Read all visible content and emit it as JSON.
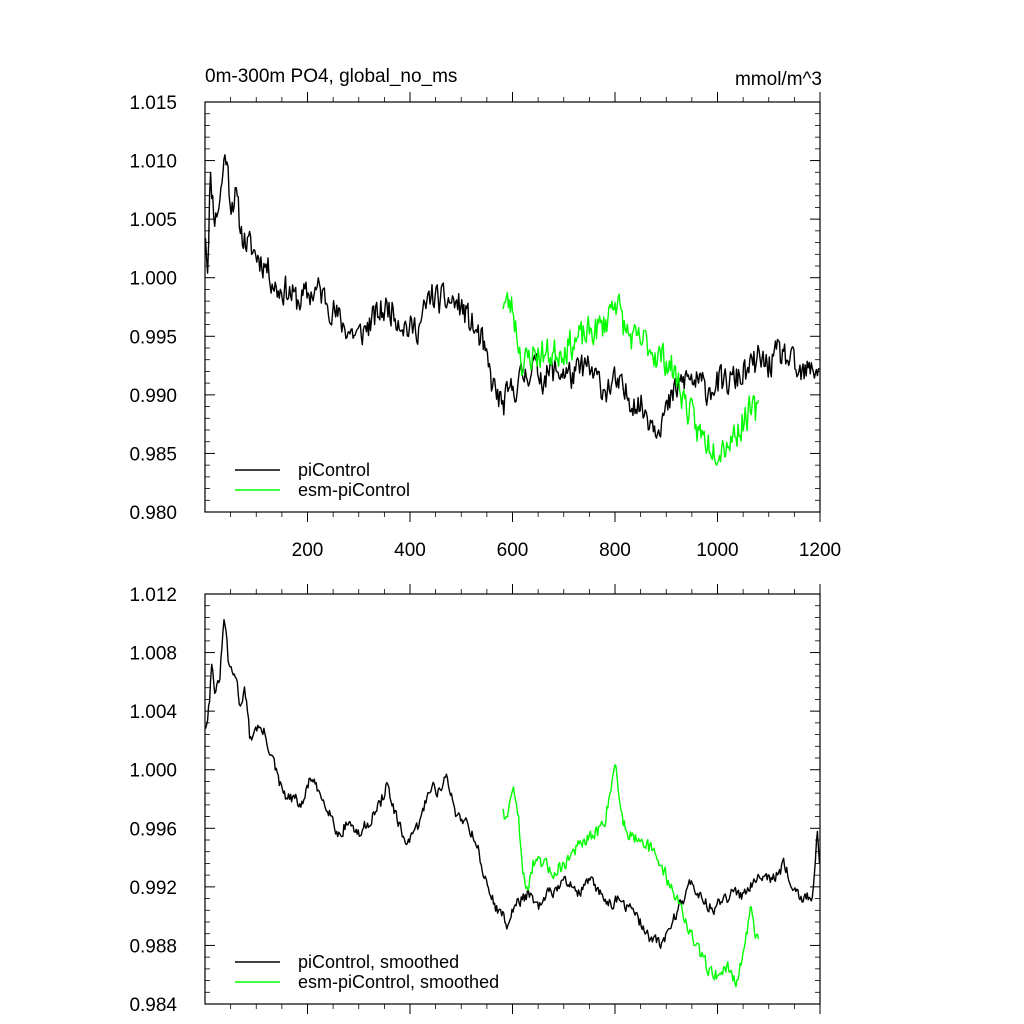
{
  "chart_data": [
    {
      "type": "line",
      "title": "0m-300m PO4, global_no_ms",
      "units": "mmol/m^3",
      "xlabel": "",
      "ylabel": "",
      "xlim": [
        0,
        1200
      ],
      "ylim": [
        0.98,
        1.015
      ],
      "xticks": [
        200,
        400,
        600,
        800,
        1000,
        1200
      ],
      "xtick_labels": [
        "200",
        "400",
        "600",
        "800",
        "1000",
        "1200"
      ],
      "yticks": [
        0.98,
        0.985,
        0.99,
        0.995,
        1.0,
        1.005,
        1.01,
        1.015
      ],
      "ytick_labels": [
        "0.980",
        "0.985",
        "0.990",
        "0.995",
        "1.000",
        "1.005",
        "1.010",
        "1.015"
      ],
      "grid": false,
      "legend_position": "bottom-left",
      "series": [
        {
          "name": "piControl",
          "color": "#000000",
          "x_start": 1,
          "x_end": 1200,
          "anchors": [
            [
              1,
              1.004
            ],
            [
              5,
              1.001
            ],
            [
              10,
              1.0085
            ],
            [
              20,
              1.005
            ],
            [
              30,
              1.007
            ],
            [
              40,
              1.011
            ],
            [
              50,
              1.0065
            ],
            [
              60,
              1.007
            ],
            [
              70,
              1.004
            ],
            [
              80,
              1.003
            ],
            [
              100,
              1.002
            ],
            [
              120,
              1.001
            ],
            [
              140,
              0.999
            ],
            [
              160,
              0.999
            ],
            [
              180,
              0.998
            ],
            [
              200,
              0.9985
            ],
            [
              220,
              0.999
            ],
            [
              240,
              0.998
            ],
            [
              260,
              0.9965
            ],
            [
              280,
              0.9955
            ],
            [
              300,
              0.995
            ],
            [
              320,
              0.996
            ],
            [
              340,
              0.997
            ],
            [
              360,
              0.9975
            ],
            [
              380,
              0.9965
            ],
            [
              400,
              0.9955
            ],
            [
              420,
              0.996
            ],
            [
              440,
              0.9985
            ],
            [
              460,
              0.998
            ],
            [
              480,
              0.998
            ],
            [
              500,
              0.9975
            ],
            [
              520,
              0.996
            ],
            [
              540,
              0.9945
            ],
            [
              560,
              0.991
            ],
            [
              580,
              0.989
            ],
            [
              600,
              0.9905
            ],
            [
              620,
              0.9915
            ],
            [
              640,
              0.9925
            ],
            [
              660,
              0.9915
            ],
            [
              680,
              0.992
            ],
            [
              700,
              0.992
            ],
            [
              720,
              0.9915
            ],
            [
              740,
              0.9925
            ],
            [
              760,
              0.9915
            ],
            [
              780,
              0.9905
            ],
            [
              800,
              0.991
            ],
            [
              820,
              0.99
            ],
            [
              840,
              0.9895
            ],
            [
              860,
              0.9885
            ],
            [
              880,
              0.9875
            ],
            [
              900,
              0.9885
            ],
            [
              920,
              0.9905
            ],
            [
              940,
              0.9915
            ],
            [
              960,
              0.991
            ],
            [
              980,
              0.9905
            ],
            [
              1000,
              0.991
            ],
            [
              1020,
              0.991
            ],
            [
              1040,
              0.9915
            ],
            [
              1060,
              0.992
            ],
            [
              1080,
              0.993
            ],
            [
              1100,
              0.9925
            ],
            [
              1120,
              0.9935
            ],
            [
              1140,
              0.993
            ],
            [
              1160,
              0.9915
            ],
            [
              1180,
              0.992
            ],
            [
              1200,
              0.9925
            ]
          ],
          "noise": 0.0018,
          "seed": 11
        },
        {
          "name": "esm-piControl",
          "color": "#00ff00",
          "x_start": 580,
          "x_end": 1080,
          "anchors": [
            [
              580,
              0.998
            ],
            [
              600,
              0.9975
            ],
            [
              620,
              0.9925
            ],
            [
              640,
              0.9935
            ],
            [
              660,
              0.9935
            ],
            [
              680,
              0.9935
            ],
            [
              700,
              0.994
            ],
            [
              720,
              0.9945
            ],
            [
              740,
              0.995
            ],
            [
              760,
              0.9955
            ],
            [
              780,
              0.996
            ],
            [
              800,
              0.9985
            ],
            [
              820,
              0.9955
            ],
            [
              840,
              0.9945
            ],
            [
              860,
              0.9945
            ],
            [
              880,
              0.9935
            ],
            [
              900,
              0.993
            ],
            [
              920,
              0.9915
            ],
            [
              940,
              0.989
            ],
            [
              960,
              0.987
            ],
            [
              980,
              0.986
            ],
            [
              1000,
              0.9855
            ],
            [
              1020,
              0.986
            ],
            [
              1040,
              0.987
            ],
            [
              1060,
              0.9885
            ],
            [
              1080,
              0.9885
            ]
          ],
          "noise": 0.0019,
          "seed": 23
        }
      ]
    },
    {
      "type": "line",
      "title": "",
      "units": "",
      "xlabel": "",
      "ylabel": "",
      "xlim": [
        0,
        1200
      ],
      "ylim": [
        0.984,
        1.012
      ],
      "xticks": [
        200,
        400,
        600,
        800,
        1000,
        1200
      ],
      "xtick_labels": [],
      "yticks": [
        0.984,
        0.988,
        0.992,
        0.996,
        1.0,
        1.004,
        1.008,
        1.012
      ],
      "ytick_labels": [
        "0.984",
        "0.988",
        "0.992",
        "0.996",
        "1.000",
        "1.004",
        "1.008",
        "1.012"
      ],
      "grid": false,
      "legend_position": "bottom-left",
      "series": [
        {
          "name": "piControl, smoothed",
          "color": "#000000",
          "x_start": 1,
          "x_end": 1200,
          "anchors": [
            [
              1,
              1.003
            ],
            [
              8,
              1.0045
            ],
            [
              14,
              1.0075
            ],
            [
              20,
              1.005
            ],
            [
              28,
              1.006
            ],
            [
              38,
              1.0105
            ],
            [
              45,
              1.0075
            ],
            [
              52,
              1.0065
            ],
            [
              60,
              1.0065
            ],
            [
              68,
              1.0045
            ],
            [
              78,
              1.0055
            ],
            [
              88,
              1.002
            ],
            [
              100,
              1.003
            ],
            [
              115,
              1.0025
            ],
            [
              130,
              1.001
            ],
            [
              145,
              0.999
            ],
            [
              160,
              0.998
            ],
            [
              175,
              0.998
            ],
            [
              190,
              0.9975
            ],
            [
              205,
              0.9995
            ],
            [
              220,
              0.9985
            ],
            [
              240,
              0.9975
            ],
            [
              260,
              0.9955
            ],
            [
              280,
              0.9965
            ],
            [
              300,
              0.9955
            ],
            [
              320,
              0.9965
            ],
            [
              340,
              0.9975
            ],
            [
              355,
              0.999
            ],
            [
              370,
              0.997
            ],
            [
              385,
              0.9955
            ],
            [
              400,
              0.995
            ],
            [
              420,
              0.9965
            ],
            [
              440,
              0.999
            ],
            [
              455,
              0.9985
            ],
            [
              470,
              0.9995
            ],
            [
              490,
              0.997
            ],
            [
              510,
              0.9965
            ],
            [
              530,
              0.995
            ],
            [
              550,
              0.992
            ],
            [
              570,
              0.9905
            ],
            [
              590,
              0.9895
            ],
            [
              610,
              0.991
            ],
            [
              630,
              0.9915
            ],
            [
              650,
              0.9905
            ],
            [
              670,
              0.9915
            ],
            [
              690,
              0.992
            ],
            [
              710,
              0.9925
            ],
            [
              730,
              0.9915
            ],
            [
              750,
              0.9925
            ],
            [
              770,
              0.9915
            ],
            [
              790,
              0.991
            ],
            [
              810,
              0.991
            ],
            [
              830,
              0.9905
            ],
            [
              850,
              0.9895
            ],
            [
              870,
              0.9885
            ],
            [
              890,
              0.988
            ],
            [
              910,
              0.9895
            ],
            [
              930,
              0.991
            ],
            [
              950,
              0.9925
            ],
            [
              970,
              0.991
            ],
            [
              990,
              0.9905
            ],
            [
              1010,
              0.991
            ],
            [
              1030,
              0.9915
            ],
            [
              1050,
              0.9915
            ],
            [
              1070,
              0.9925
            ],
            [
              1090,
              0.993
            ],
            [
              1110,
              0.9925
            ],
            [
              1130,
              0.9935
            ],
            [
              1150,
              0.992
            ],
            [
              1170,
              0.991
            ],
            [
              1185,
              0.9915
            ],
            [
              1195,
              0.9955
            ],
            [
              1200,
              0.9925
            ]
          ],
          "noise": 0.0006,
          "seed": 31
        },
        {
          "name": "esm-piControl, smoothed",
          "color": "#00ff00",
          "x_start": 580,
          "x_end": 1080,
          "anchors": [
            [
              580,
              0.9975
            ],
            [
              590,
              0.9965
            ],
            [
              600,
              0.999
            ],
            [
              612,
              0.9965
            ],
            [
              625,
              0.9915
            ],
            [
              640,
              0.9935
            ],
            [
              660,
              0.9935
            ],
            [
              680,
              0.993
            ],
            [
              700,
              0.9935
            ],
            [
              720,
              0.9945
            ],
            [
              740,
              0.995
            ],
            [
              760,
              0.9955
            ],
            [
              780,
              0.9965
            ],
            [
              800,
              1.0005
            ],
            [
              815,
              0.9965
            ],
            [
              830,
              0.9955
            ],
            [
              850,
              0.9955
            ],
            [
              870,
              0.9945
            ],
            [
              890,
              0.9935
            ],
            [
              910,
              0.992
            ],
            [
              930,
              0.9905
            ],
            [
              950,
              0.9885
            ],
            [
              965,
              0.9875
            ],
            [
              980,
              0.9865
            ],
            [
              1000,
              0.986
            ],
            [
              1020,
              0.9865
            ],
            [
              1040,
              0.9855
            ],
            [
              1055,
              0.9885
            ],
            [
              1065,
              0.9905
            ],
            [
              1080,
              0.988
            ]
          ],
          "noise": 0.0007,
          "seed": 47
        }
      ]
    }
  ]
}
